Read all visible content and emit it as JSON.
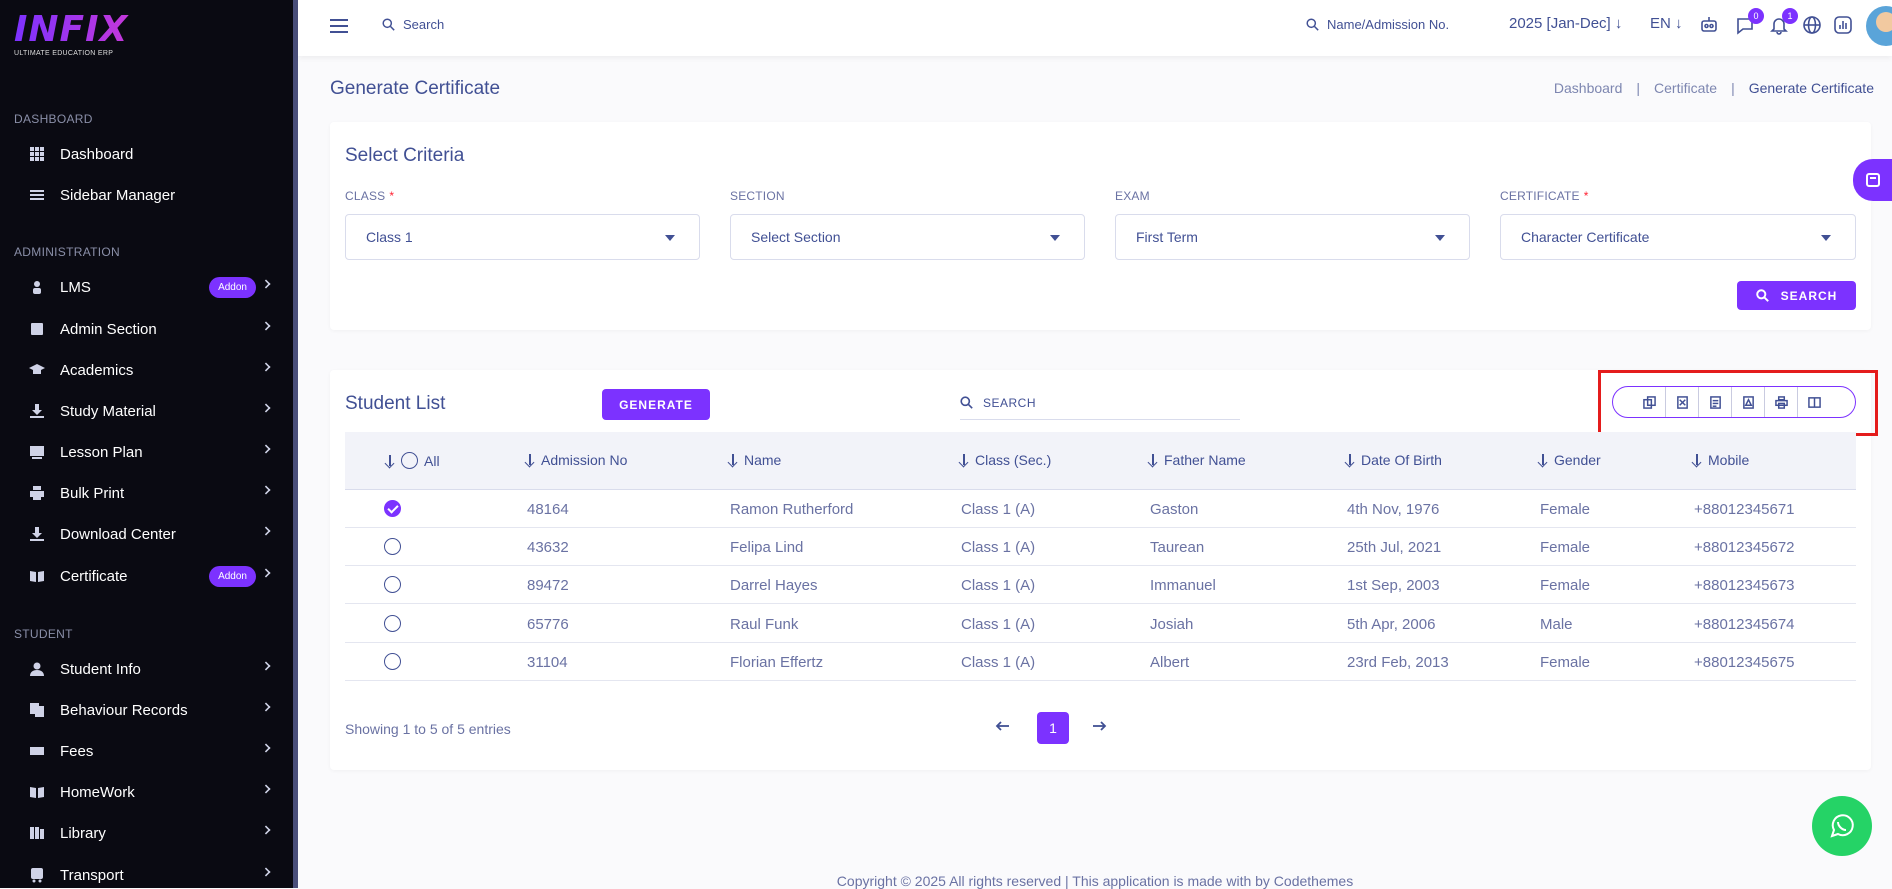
{
  "app": {
    "logo": "INFIX",
    "tagline": "ULTIMATE EDUCATION ERP"
  },
  "sidebar": {
    "sections": [
      {
        "label": "DASHBOARD"
      },
      {
        "label": "ADMINISTRATION"
      },
      {
        "label": "STUDENT"
      }
    ],
    "items": [
      {
        "label": "Dashboard",
        "icon": "grid-icon"
      },
      {
        "label": "Sidebar Manager",
        "icon": "list-icon"
      },
      {
        "label": "LMS",
        "icon": "lms-icon",
        "badge": "Addon"
      },
      {
        "label": "Admin Section",
        "icon": "admin-icon"
      },
      {
        "label": "Academics",
        "icon": "graduation-cap-icon"
      },
      {
        "label": "Study Material",
        "icon": "download-icon"
      },
      {
        "label": "Lesson Plan",
        "icon": "board-icon"
      },
      {
        "label": "Bulk Print",
        "icon": "printer-icon"
      },
      {
        "label": "Download Center",
        "icon": "download-icon"
      },
      {
        "label": "Certificate",
        "icon": "book-icon",
        "badge": "Addon"
      },
      {
        "label": "Student Info",
        "icon": "user-icon"
      },
      {
        "label": "Behaviour Records",
        "icon": "records-icon"
      },
      {
        "label": "Fees",
        "icon": "money-icon"
      },
      {
        "label": "HomeWork",
        "icon": "book-icon"
      },
      {
        "label": "Library",
        "icon": "library-icon"
      },
      {
        "label": "Transport",
        "icon": "bus-icon"
      }
    ]
  },
  "topbar": {
    "search_label": "Search",
    "student_search_label": "Name/Admission No.",
    "year": "2025 [Jan-Dec]",
    "lang": "EN",
    "chat_badge": "0",
    "notif_badge": "1"
  },
  "page": {
    "title": "Generate Certificate",
    "breadcrumb": [
      "Dashboard",
      "Certificate",
      "Generate Certificate"
    ],
    "separator": "|"
  },
  "criteria": {
    "title": "Select Criteria",
    "fields": [
      {
        "label": "CLASS",
        "required": "*",
        "value": "Class 1"
      },
      {
        "label": "SECTION",
        "required": "",
        "value": "Select Section"
      },
      {
        "label": "EXAM",
        "required": "",
        "value": "First Term"
      },
      {
        "label": "CERTIFICATE",
        "required": "*",
        "value": "Character Certificate"
      }
    ],
    "search_button": "SEARCH"
  },
  "students": {
    "title": "Student List",
    "generate_button": "GENERATE",
    "search_placeholder": "SEARCH",
    "export_buttons": [
      "copy-icon",
      "excel-icon",
      "csv-icon",
      "pdf-icon",
      "print-icon",
      "columns-icon"
    ],
    "headers": [
      "All",
      "Admission No",
      "Name",
      "Class (Sec.)",
      "Father Name",
      "Date Of Birth",
      "Gender",
      "Mobile"
    ],
    "rows": [
      {
        "checked": true,
        "admission": "48164",
        "name": "Ramon Rutherford",
        "class": "Class 1 (A)",
        "father": "Gaston",
        "dob": "4th Nov, 1976",
        "gender": "Female",
        "mobile": "+88012345671"
      },
      {
        "checked": false,
        "admission": "43632",
        "name": "Felipa Lind",
        "class": "Class 1 (A)",
        "father": "Taurean",
        "dob": "25th Jul, 2021",
        "gender": "Female",
        "mobile": "+88012345672"
      },
      {
        "checked": false,
        "admission": "89472",
        "name": "Darrel Hayes",
        "class": "Class 1 (A)",
        "father": "Immanuel",
        "dob": "1st Sep, 2003",
        "gender": "Female",
        "mobile": "+88012345673"
      },
      {
        "checked": false,
        "admission": "65776",
        "name": "Raul Funk",
        "class": "Class 1 (A)",
        "father": "Josiah",
        "dob": "5th Apr, 2006",
        "gender": "Male",
        "mobile": "+88012345674"
      },
      {
        "checked": false,
        "admission": "31104",
        "name": "Florian Effertz",
        "class": "Class 1 (A)",
        "father": "Albert",
        "dob": "23rd Feb, 2013",
        "gender": "Female",
        "mobile": "+88012345675"
      }
    ],
    "showing": "Showing 1 to 5 of 5 entries",
    "current_page": "1"
  },
  "footer": "Copyright © 2025 All rights reserved | This application is made with by Codethemes",
  "colors": {
    "accent": "#7c32ff",
    "text": "#415094",
    "sidebar": "#0a0a12",
    "highlight": "#e41c1c",
    "whatsapp": "#25d366"
  }
}
